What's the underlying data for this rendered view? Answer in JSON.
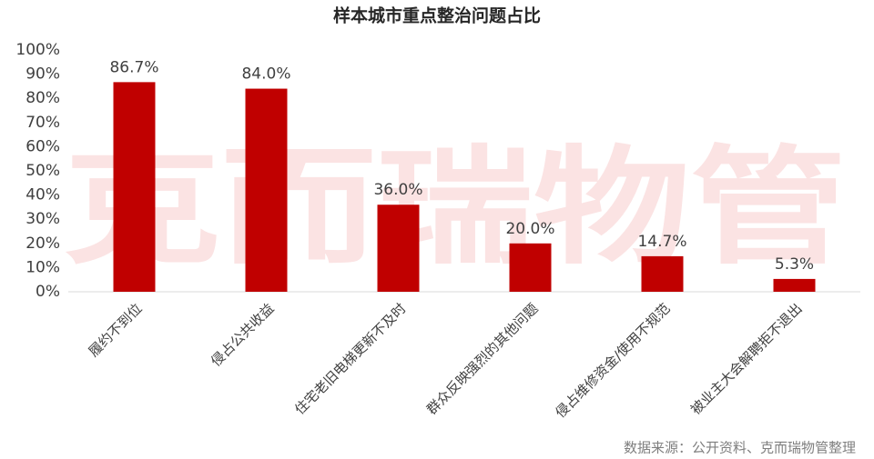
{
  "chart_data": {
    "type": "bar",
    "title": "样本城市重点整治问题占比",
    "categories": [
      "履约不到位",
      "侵占公共收益",
      "住宅老旧电梯更新不及时",
      "群众反映强烈的其他问题",
      "侵占维修资金/使用不规范",
      "被业主大会解聘拒不退出"
    ],
    "values": [
      86.7,
      84.0,
      36.0,
      20.0,
      14.7,
      5.3
    ],
    "value_labels": [
      "86.7%",
      "84.0%",
      "36.0%",
      "20.0%",
      "14.7%",
      "5.3%"
    ],
    "color": "#c00000",
    "ylim": [
      0,
      100
    ],
    "yticks": [
      {
        "value": 0,
        "label": "0%"
      },
      {
        "value": 10,
        "label": "10%"
      },
      {
        "value": 20,
        "label": "20%"
      },
      {
        "value": 30,
        "label": "30%"
      },
      {
        "value": 40,
        "label": "40%"
      },
      {
        "value": 50,
        "label": "50%"
      },
      {
        "value": 60,
        "label": "60%"
      },
      {
        "value": 70,
        "label": "70%"
      },
      {
        "value": 80,
        "label": "80%"
      },
      {
        "value": 90,
        "label": "90%"
      },
      {
        "value": 100,
        "label": "100%"
      }
    ],
    "grid": false,
    "watermark": "克而瑞物管",
    "source": "数据来源：公开资料、克而瑞物管整理"
  }
}
